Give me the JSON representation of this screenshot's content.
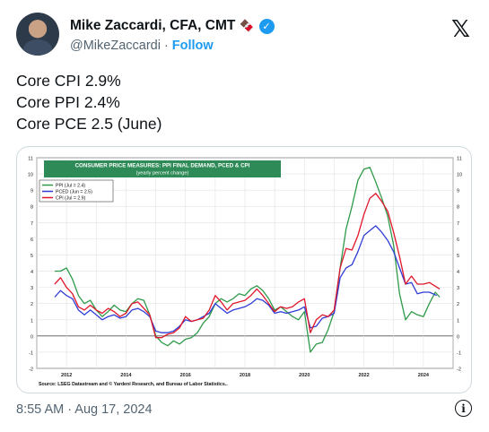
{
  "author": {
    "name": "Mike Zaccardi, CFA, CMT",
    "emoji": "🍫",
    "handle": "@MikeZaccardi",
    "separator": "·",
    "follow_label": "Follow"
  },
  "tweet": {
    "lines": [
      "Core CPI 2.9%",
      "Core PPI 2.4%",
      "Core PCE 2.5 (June)"
    ],
    "timestamp": "8:55 AM · Aug 17, 2024"
  },
  "icons": {
    "logo": "x-logo-icon",
    "verified": "verified-badge-icon",
    "info": "info-icon"
  },
  "chart_data": {
    "type": "line",
    "title": "CONSUMER PRICE MEASURES: PPI FINAL DEMAND, PCED & CPI",
    "subtitle": "(yearly percent change)",
    "source": "Source: LSEG Datastream and © Yardeni Research, and Bureau of Labor Statistics..",
    "ylim": [
      -2,
      11
    ],
    "xlim": [
      2011.0,
      2025.0
    ],
    "y_ticks": [
      -2,
      -1,
      0,
      1,
      2,
      3,
      4,
      5,
      6,
      7,
      8,
      9,
      10,
      11
    ],
    "x_tick_labels": [
      "2012",
      "2014",
      "2016",
      "2018",
      "2020",
      "2022",
      "2024"
    ],
    "x_tick_values": [
      2012,
      2014,
      2016,
      2018,
      2020,
      2022,
      2024
    ],
    "legend_placement": "top-left",
    "series": [
      {
        "name": "PPI (Jul = 2.4)",
        "color": "#2e9a4a",
        "x": [
          2011.6,
          2011.8,
          2012.0,
          2012.2,
          2012.4,
          2012.6,
          2012.8,
          2013.0,
          2013.2,
          2013.4,
          2013.6,
          2013.8,
          2014.0,
          2014.2,
          2014.4,
          2014.6,
          2014.8,
          2015.0,
          2015.2,
          2015.4,
          2015.6,
          2015.8,
          2016.0,
          2016.2,
          2016.4,
          2016.6,
          2016.8,
          2017.0,
          2017.2,
          2017.4,
          2017.6,
          2017.8,
          2018.0,
          2018.2,
          2018.4,
          2018.6,
          2018.8,
          2019.0,
          2019.2,
          2019.4,
          2019.6,
          2019.8,
          2020.0,
          2020.2,
          2020.4,
          2020.6,
          2020.8,
          2021.0,
          2021.2,
          2021.4,
          2021.6,
          2021.8,
          2022.0,
          2022.2,
          2022.4,
          2022.6,
          2022.8,
          2023.0,
          2023.2,
          2023.4,
          2023.6,
          2023.8,
          2024.0,
          2024.2,
          2024.4,
          2024.55
        ],
        "y": [
          4.0,
          4.0,
          4.2,
          3.5,
          2.5,
          2.0,
          2.2,
          1.6,
          1.2,
          1.5,
          1.9,
          1.6,
          1.5,
          2.0,
          2.3,
          2.2,
          1.3,
          0.0,
          -0.4,
          -0.6,
          -0.3,
          -0.5,
          -0.2,
          -0.1,
          0.2,
          0.8,
          1.2,
          2.0,
          2.3,
          2.1,
          2.3,
          2.6,
          2.5,
          2.9,
          3.1,
          2.8,
          2.3,
          1.6,
          1.8,
          1.5,
          1.2,
          1.0,
          1.5,
          -1.0,
          -0.5,
          -0.4,
          0.4,
          1.5,
          4.2,
          6.6,
          8.0,
          9.6,
          10.3,
          10.4,
          9.5,
          8.5,
          7.4,
          5.6,
          2.6,
          1.0,
          1.5,
          1.3,
          1.2,
          2.0,
          2.7,
          2.4
        ]
      },
      {
        "name": "PCED (Jun = 2.5)",
        "color": "#2f3cd6",
        "x": [
          2011.6,
          2011.8,
          2012.0,
          2012.2,
          2012.4,
          2012.6,
          2012.8,
          2013.0,
          2013.2,
          2013.4,
          2013.6,
          2013.8,
          2014.0,
          2014.2,
          2014.4,
          2014.6,
          2014.8,
          2015.0,
          2015.2,
          2015.4,
          2015.6,
          2015.8,
          2016.0,
          2016.2,
          2016.4,
          2016.6,
          2016.8,
          2017.0,
          2017.2,
          2017.4,
          2017.6,
          2017.8,
          2018.0,
          2018.2,
          2018.4,
          2018.6,
          2018.8,
          2019.0,
          2019.2,
          2019.4,
          2019.6,
          2019.8,
          2020.0,
          2020.2,
          2020.4,
          2020.6,
          2020.8,
          2021.0,
          2021.2,
          2021.4,
          2021.6,
          2021.8,
          2022.0,
          2022.2,
          2022.4,
          2022.6,
          2022.8,
          2023.0,
          2023.2,
          2023.4,
          2023.6,
          2023.8,
          2024.0,
          2024.2,
          2024.45
        ],
        "y": [
          2.4,
          2.8,
          2.5,
          2.3,
          1.6,
          1.3,
          1.6,
          1.3,
          1.0,
          1.2,
          1.3,
          1.1,
          1.2,
          1.6,
          1.7,
          1.5,
          1.2,
          0.3,
          0.2,
          0.2,
          0.3,
          0.6,
          1.0,
          0.9,
          1.0,
          1.2,
          1.4,
          2.0,
          1.7,
          1.4,
          1.6,
          1.7,
          1.8,
          2.0,
          2.3,
          2.2,
          1.9,
          1.4,
          1.5,
          1.4,
          1.5,
          1.6,
          1.8,
          0.5,
          0.6,
          1.1,
          1.2,
          1.4,
          3.6,
          4.2,
          4.4,
          5.2,
          6.2,
          6.5,
          6.8,
          6.4,
          5.9,
          5.2,
          4.2,
          3.2,
          3.3,
          2.6,
          2.7,
          2.7,
          2.5
        ]
      },
      {
        "name": "CPI (Jul = 2.9)",
        "color": "#e0162a",
        "x": [
          2011.6,
          2011.8,
          2012.0,
          2012.2,
          2012.4,
          2012.6,
          2012.8,
          2013.0,
          2013.2,
          2013.4,
          2013.6,
          2013.8,
          2014.0,
          2014.2,
          2014.4,
          2014.6,
          2014.8,
          2015.0,
          2015.2,
          2015.4,
          2015.6,
          2015.8,
          2016.0,
          2016.2,
          2016.4,
          2016.6,
          2016.8,
          2017.0,
          2017.2,
          2017.4,
          2017.6,
          2017.8,
          2018.0,
          2018.2,
          2018.4,
          2018.6,
          2018.8,
          2019.0,
          2019.2,
          2019.4,
          2019.6,
          2019.8,
          2020.0,
          2020.2,
          2020.4,
          2020.6,
          2020.8,
          2021.0,
          2021.2,
          2021.4,
          2021.6,
          2021.8,
          2022.0,
          2022.2,
          2022.4,
          2022.6,
          2022.8,
          2023.0,
          2023.2,
          2023.4,
          2023.6,
          2023.8,
          2024.0,
          2024.2,
          2024.55
        ],
        "y": [
          3.2,
          3.6,
          3.0,
          2.6,
          1.8,
          1.6,
          1.9,
          1.6,
          1.4,
          1.7,
          1.5,
          1.2,
          1.4,
          2.0,
          2.1,
          1.7,
          1.3,
          -0.1,
          -0.1,
          0.1,
          0.2,
          0.5,
          1.2,
          0.9,
          1.0,
          1.1,
          1.6,
          2.5,
          2.1,
          1.6,
          2.0,
          2.1,
          2.2,
          2.5,
          2.9,
          2.5,
          2.0,
          1.5,
          1.8,
          1.7,
          1.8,
          2.1,
          2.3,
          0.2,
          1.0,
          1.3,
          1.2,
          1.6,
          4.2,
          5.4,
          5.3,
          6.2,
          7.5,
          8.5,
          8.8,
          8.3,
          7.7,
          6.4,
          4.9,
          3.2,
          3.7,
          3.2,
          3.2,
          3.3,
          2.9
        ]
      }
    ]
  }
}
